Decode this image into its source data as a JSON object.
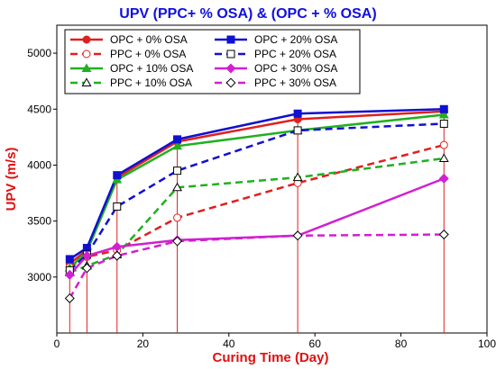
{
  "chart_data": {
    "type": "line",
    "title": "UPV (PPC+ % OSA) & (OPC + % OSA)",
    "xlabel": "Curing Time (Day)",
    "ylabel": "UPV (m/s)",
    "xlim": [
      0,
      100
    ],
    "ylim": [
      2500,
      5250
    ],
    "xticks": [
      0,
      20,
      40,
      60,
      80,
      100
    ],
    "yticks": [
      3000,
      3500,
      4000,
      4500,
      5000
    ],
    "grid": false,
    "legend_position": "top-left",
    "drop_lines_x": [
      3,
      7,
      14,
      28,
      56,
      90
    ],
    "drop_line_color": "#e02020",
    "series": [
      {
        "name": "OPC + 0% OSA",
        "color": "#e02020",
        "dash": "solid",
        "marker": "circle",
        "filled": true,
        "x": [
          3,
          7,
          14,
          28,
          56,
          90
        ],
        "y": [
          3120,
          3240,
          3890,
          4210,
          4410,
          4480
        ]
      },
      {
        "name": "PPC + 0% OSA",
        "color": "#e02020",
        "dash": "dashed",
        "marker": "circle",
        "filled": false,
        "x": [
          3,
          7,
          14,
          28,
          56,
          90
        ],
        "y": [
          3090,
          3180,
          3240,
          3530,
          3840,
          4180
        ]
      },
      {
        "name": "OPC + 10% OSA",
        "color": "#20b020",
        "dash": "solid",
        "marker": "triangle",
        "filled": true,
        "x": [
          3,
          7,
          14,
          28,
          56,
          90
        ],
        "y": [
          3080,
          3230,
          3870,
          4170,
          4310,
          4450
        ]
      },
      {
        "name": "PPC + 10% OSA",
        "color": "#20b020",
        "dash": "dashed",
        "marker": "triangle",
        "filled": false,
        "x": [
          3,
          7,
          14,
          28,
          56,
          90
        ],
        "y": [
          3040,
          3100,
          3200,
          3800,
          3890,
          4060
        ]
      },
      {
        "name": "OPC + 20% OSA",
        "color": "#1010d0",
        "dash": "solid",
        "marker": "square",
        "filled": true,
        "x": [
          3,
          7,
          14,
          28,
          56,
          90
        ],
        "y": [
          3160,
          3260,
          3910,
          4230,
          4460,
          4500
        ]
      },
      {
        "name": "PPC + 20% OSA",
        "color": "#1010d0",
        "dash": "dashed",
        "marker": "square",
        "filled": false,
        "x": [
          3,
          7,
          14,
          28,
          56,
          90
        ],
        "y": [
          3060,
          3200,
          3630,
          3950,
          4310,
          4370
        ]
      },
      {
        "name": "OPC + 30% OSA",
        "color": "#d020d0",
        "dash": "solid",
        "marker": "diamond",
        "filled": true,
        "x": [
          3,
          7,
          14,
          28,
          56,
          90
        ],
        "y": [
          3020,
          3190,
          3270,
          3330,
          3370,
          3880
        ]
      },
      {
        "name": "PPC + 30% OSA",
        "color": "#d020d0",
        "dash": "dashed",
        "marker": "diamond",
        "filled": false,
        "x": [
          3,
          7,
          14,
          28,
          56,
          90
        ],
        "y": [
          2810,
          3080,
          3190,
          3320,
          3370,
          3380
        ]
      }
    ]
  }
}
